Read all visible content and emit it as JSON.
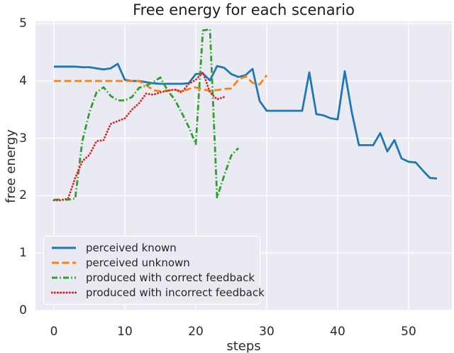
{
  "figure": {
    "title": "Free energy for each scenario",
    "xlabel": "steps",
    "ylabel": "free energy"
  },
  "chart_data": {
    "type": "line",
    "title": "Free energy for each scenario",
    "xlabel": "steps",
    "ylabel": "free energy",
    "xlim": [
      -2.6,
      56.1
    ],
    "ylim": [
      0,
      5.04
    ],
    "x_ticks": [
      0,
      10,
      20,
      30,
      40,
      50
    ],
    "y_ticks": [
      0,
      1,
      2,
      3,
      4,
      5
    ],
    "grid": true,
    "plot_bg": "#eaeaf2",
    "grid_color": "#ffffff",
    "legend_position": "lower left",
    "series": [
      {
        "name": "perceived known",
        "color": "#1f77b4",
        "style": "solid",
        "x_start": 0,
        "values": [
          4.25,
          4.25,
          4.25,
          4.25,
          4.24,
          4.24,
          4.22,
          4.2,
          4.22,
          4.3,
          4.02,
          4.0,
          4.0,
          3.98,
          3.96,
          3.95,
          3.95,
          3.95,
          3.95,
          3.96,
          4.12,
          4.13,
          4.01,
          4.26,
          4.23,
          4.12,
          4.07,
          4.1,
          4.21,
          3.65,
          3.48,
          3.48,
          3.48,
          3.48,
          3.48,
          3.48,
          4.15,
          3.42,
          3.4,
          3.35,
          3.33,
          4.17,
          3.45,
          2.88,
          2.88,
          2.88,
          3.09,
          2.77,
          2.97,
          2.65,
          2.59,
          2.58,
          2.44,
          2.31,
          2.3
        ]
      },
      {
        "name": "perceived unknown",
        "color": "#ff7f0e",
        "style": "dashed",
        "x_start": 0,
        "values": [
          4.0,
          4.0,
          4.0,
          4.0,
          4.0,
          4.0,
          4.0,
          4.0,
          4.0,
          4.0,
          4.0,
          4.0,
          4.0,
          3.93,
          3.84,
          3.82,
          3.83,
          3.85,
          3.82,
          3.86,
          3.89,
          3.85,
          3.83,
          3.84,
          3.86,
          3.87,
          4.02,
          4.08,
          3.97,
          3.94,
          4.1
        ]
      },
      {
        "name": "produced with correct feedback",
        "color": "#2ca02c",
        "style": "dashdot",
        "x_start": 0,
        "values": [
          1.93,
          1.93,
          1.93,
          1.95,
          2.95,
          3.45,
          3.8,
          3.89,
          3.74,
          3.66,
          3.66,
          3.72,
          3.88,
          3.92,
          3.98,
          4.06,
          3.84,
          3.68,
          3.45,
          3.2,
          2.9,
          4.88,
          4.9,
          1.97,
          2.35,
          2.7,
          2.83
        ]
      },
      {
        "name": "produced with incorrect feedback",
        "color": "#d62728",
        "style": "dotted",
        "x_start": 0,
        "values": [
          1.92,
          1.92,
          1.95,
          2.31,
          2.6,
          2.71,
          2.95,
          2.97,
          3.25,
          3.3,
          3.35,
          3.5,
          3.61,
          3.78,
          3.76,
          3.8,
          3.83,
          3.85,
          3.8,
          3.95,
          4.02,
          4.15,
          3.8,
          3.68,
          3.72
        ]
      }
    ]
  }
}
